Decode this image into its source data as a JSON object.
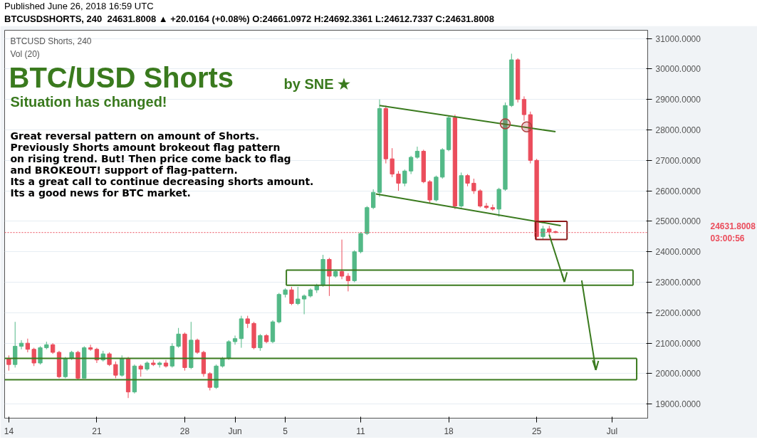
{
  "chart_data": {
    "type": "candlestick",
    "title": "BTC/USD Shorts",
    "subtitle": "Situation has changed!",
    "annotations": [
      "Published June 26, 2018 16:59 UTC",
      "BTCUSDSHORTS, 240  24631.8008 ▲ +20.0164 (+0.08%) O:24661.0972 H:24692.3361 L:24612.7337 C:24631.8008",
      "BTCUSD Shorts, 240",
      "Vol (20)",
      "by SNE ★",
      "Great reversal pattern on amount of Shorts.\nPreviously Shorts amount brokeout flag pattern\non rising trend. But! Then price come back to flag\nand BROKEOUT! support of flag-pattern.\nIts a great call to continue decreasing shorts amount.\nIts a good news for BTC market.",
      "03:00:56"
    ],
    "x": [
      "2018-05-14T00:00",
      "2018-05-14T12:00",
      "2018-05-15T00:00",
      "2018-05-15T12:00",
      "2018-05-16T00:00",
      "2018-05-16T12:00",
      "2018-05-17T00:00",
      "2018-05-17T12:00",
      "2018-05-18T00:00",
      "2018-05-18T12:00",
      "2018-05-19T00:00",
      "2018-05-19T12:00",
      "2018-05-20T00:00",
      "2018-05-20T12:00",
      "2018-05-21T00:00",
      "2018-05-21T12:00",
      "2018-05-22T00:00",
      "2018-05-22T12:00",
      "2018-05-23T00:00",
      "2018-05-23T12:00",
      "2018-05-24T00:00",
      "2018-05-24T12:00",
      "2018-05-25T00:00",
      "2018-05-25T12:00",
      "2018-05-26T00:00",
      "2018-05-26T12:00",
      "2018-05-27T00:00",
      "2018-05-27T12:00",
      "2018-05-28T00:00",
      "2018-05-28T12:00",
      "2018-05-29T00:00",
      "2018-05-29T12:00",
      "2018-05-30T00:00",
      "2018-05-30T12:00",
      "2018-05-31T00:00",
      "2018-05-31T12:00",
      "2018-06-01T00:00",
      "2018-06-01T12:00",
      "2018-06-02T00:00",
      "2018-06-02T12:00",
      "2018-06-03T00:00",
      "2018-06-03T12:00",
      "2018-06-04T00:00",
      "2018-06-04T12:00",
      "2018-06-05T00:00",
      "2018-06-05T12:00",
      "2018-06-06T00:00",
      "2018-06-06T12:00",
      "2018-06-07T00:00",
      "2018-06-07T12:00",
      "2018-06-08T00:00",
      "2018-06-08T12:00",
      "2018-06-09T00:00",
      "2018-06-09T12:00",
      "2018-06-10T00:00",
      "2018-06-10T12:00",
      "2018-06-11T00:00",
      "2018-06-11T12:00",
      "2018-06-12T00:00",
      "2018-06-12T12:00",
      "2018-06-13T00:00",
      "2018-06-13T12:00",
      "2018-06-14T00:00",
      "2018-06-14T12:00",
      "2018-06-15T00:00",
      "2018-06-15T12:00",
      "2018-06-16T00:00",
      "2018-06-16T12:00",
      "2018-06-17T00:00",
      "2018-06-17T12:00",
      "2018-06-18T00:00",
      "2018-06-18T12:00",
      "2018-06-19T00:00",
      "2018-06-19T12:00",
      "2018-06-20T00:00",
      "2018-06-20T12:00",
      "2018-06-21T00:00",
      "2018-06-21T12:00",
      "2018-06-22T00:00",
      "2018-06-22T12:00",
      "2018-06-23T00:00",
      "2018-06-23T12:00",
      "2018-06-24T00:00",
      "2018-06-24T12:00",
      "2018-06-25T00:00",
      "2018-06-25T12:00",
      "2018-06-26T00:00",
      "2018-06-26T12:00"
    ],
    "ohlc": [
      [
        20500,
        20600,
        20100,
        20300
      ],
      [
        20300,
        21700,
        20200,
        20900
      ],
      [
        20900,
        21100,
        20800,
        21000
      ],
      [
        21000,
        21150,
        20700,
        20800
      ],
      [
        20800,
        20850,
        20250,
        20350
      ],
      [
        20350,
        20900,
        20300,
        20850
      ],
      [
        20850,
        21050,
        20800,
        20950
      ],
      [
        20950,
        21000,
        20650,
        20700
      ],
      [
        20700,
        20750,
        19850,
        19900
      ],
      [
        19900,
        20550,
        19850,
        20500
      ],
      [
        20500,
        20750,
        20450,
        20700
      ],
      [
        20700,
        20750,
        19800,
        19850
      ],
      [
        19850,
        20900,
        19850,
        20850
      ],
      [
        20850,
        20950,
        20750,
        20800
      ],
      [
        20800,
        20850,
        20350,
        20450
      ],
      [
        20450,
        20750,
        20400,
        20650
      ],
      [
        20650,
        20700,
        20250,
        20300
      ],
      [
        20300,
        20400,
        19850,
        19950
      ],
      [
        19950,
        20600,
        19900,
        20500
      ],
      [
        20500,
        20550,
        19200,
        19400
      ],
      [
        19400,
        20300,
        19350,
        20250
      ],
      [
        20250,
        20300,
        19900,
        20150
      ],
      [
        20150,
        20400,
        20100,
        20350
      ],
      [
        20350,
        20450,
        20250,
        20300
      ],
      [
        20300,
        20400,
        20200,
        20350
      ],
      [
        20350,
        20450,
        20200,
        20250
      ],
      [
        20250,
        21000,
        20200,
        20900
      ],
      [
        20900,
        21500,
        20850,
        21300
      ],
      [
        21300,
        21350,
        20100,
        20200
      ],
      [
        20200,
        21700,
        20150,
        21100
      ],
      [
        21100,
        21150,
        20650,
        20700
      ],
      [
        20700,
        20750,
        19900,
        20000
      ],
      [
        20000,
        20050,
        19450,
        19550
      ],
      [
        19550,
        20300,
        19500,
        20250
      ],
      [
        20250,
        20550,
        20200,
        20500
      ],
      [
        20500,
        21100,
        20450,
        21050
      ],
      [
        21050,
        21250,
        20950,
        21150
      ],
      [
        21150,
        21900,
        20850,
        21800
      ],
      [
        21800,
        21900,
        21500,
        21650
      ],
      [
        21650,
        21700,
        20800,
        20850
      ],
      [
        20850,
        21300,
        20750,
        21250
      ],
      [
        21250,
        21300,
        21000,
        21050
      ],
      [
        21050,
        21750,
        21000,
        21700
      ],
      [
        21700,
        22650,
        21650,
        22600
      ],
      [
        22600,
        22800,
        22500,
        22750
      ],
      [
        22750,
        22850,
        22250,
        22300
      ],
      [
        22300,
        22850,
        22250,
        22450
      ],
      [
        22450,
        22600,
        21950,
        22550
      ],
      [
        22550,
        22800,
        22500,
        22750
      ],
      [
        22750,
        22950,
        22650,
        22900
      ],
      [
        22900,
        23900,
        22850,
        23750
      ],
      [
        23750,
        23800,
        22550,
        23200
      ],
      [
        23200,
        23400,
        23150,
        23350
      ],
      [
        23350,
        24400,
        23100,
        23200
      ],
      [
        23200,
        23300,
        22700,
        23050
      ],
      [
        23050,
        24050,
        23000,
        24000
      ],
      [
        24000,
        24650,
        23950,
        24600
      ],
      [
        24600,
        25500,
        24550,
        25450
      ],
      [
        25450,
        26050,
        25400,
        25950
      ],
      [
        25950,
        29000,
        25800,
        28700
      ],
      [
        28700,
        28800,
        26900,
        27050
      ],
      [
        27050,
        27400,
        26450,
        26550
      ],
      [
        26550,
        26650,
        26000,
        26250
      ],
      [
        26250,
        26700,
        26150,
        26650
      ],
      [
        26650,
        27150,
        26550,
        27100
      ],
      [
        27100,
        27450,
        27050,
        27300
      ],
      [
        27300,
        27350,
        26250,
        26300
      ],
      [
        26300,
        26350,
        25600,
        25700
      ],
      [
        25700,
        26500,
        25650,
        26450
      ],
      [
        26450,
        27400,
        26400,
        27350
      ],
      [
        27350,
        28450,
        27300,
        28400
      ],
      [
        28400,
        28500,
        25400,
        25500
      ],
      [
        25500,
        26600,
        25450,
        26500
      ],
      [
        26500,
        26550,
        26150,
        26250
      ],
      [
        26250,
        26400,
        25900,
        26000
      ],
      [
        26000,
        26050,
        25450,
        25500
      ],
      [
        25500,
        25600,
        25400,
        25450
      ],
      [
        25450,
        25550,
        25350,
        25400
      ],
      [
        25400,
        26100,
        25150,
        26050
      ],
      [
        26050,
        28900,
        26000,
        28800
      ],
      [
        28800,
        30500,
        28750,
        30300
      ],
      [
        30300,
        30350,
        28900,
        29000
      ],
      [
        29000,
        29100,
        28300,
        28500
      ],
      [
        28500,
        28600,
        26900,
        27000
      ],
      [
        27000,
        27050,
        24400,
        24500
      ],
      [
        24500,
        24850,
        24400,
        24750
      ],
      [
        24750,
        24850,
        24550,
        24650
      ],
      [
        24661.0972,
        24692.3361,
        24612.7337,
        24631.8008
      ]
    ],
    "colors": [
      "#eb4d5c",
      "#53b987",
      "#53b987",
      "#eb4d5c",
      "#eb4d5c",
      "#53b987",
      "#53b987",
      "#eb4d5c",
      "#eb4d5c",
      "#53b987",
      "#53b987",
      "#eb4d5c",
      "#53b987",
      "#eb4d5c",
      "#eb4d5c",
      "#53b987",
      "#eb4d5c",
      "#eb4d5c",
      "#53b987",
      "#eb4d5c",
      "#53b987",
      "#eb4d5c",
      "#53b987",
      "#eb4d5c",
      "#53b987",
      "#eb4d5c",
      "#53b987",
      "#53b987",
      "#eb4d5c",
      "#53b987",
      "#eb4d5c",
      "#eb4d5c",
      "#eb4d5c",
      "#53b987",
      "#53b987",
      "#53b987",
      "#53b987",
      "#53b987",
      "#eb4d5c",
      "#eb4d5c",
      "#53b987",
      "#eb4d5c",
      "#53b987",
      "#53b987",
      "#53b987",
      "#eb4d5c",
      "#53b987",
      "#53b987",
      "#53b987",
      "#53b987",
      "#53b987",
      "#eb4d5c",
      "#53b987",
      "#eb4d5c",
      "#eb4d5c",
      "#53b987",
      "#53b987",
      "#53b987",
      "#53b987",
      "#53b987",
      "#eb4d5c",
      "#eb4d5c",
      "#eb4d5c",
      "#53b987",
      "#53b987",
      "#53b987",
      "#eb4d5c",
      "#eb4d5c",
      "#53b987",
      "#53b987",
      "#53b987",
      "#eb4d5c",
      "#53b987",
      "#eb4d5c",
      "#eb4d5c",
      "#eb4d5c",
      "#eb4d5c",
      "#eb4d5c",
      "#53b987",
      "#53b987",
      "#53b987",
      "#eb4d5c",
      "#eb4d5c",
      "#eb4d5c",
      "#eb4d5c",
      "#53b987",
      "#eb4d5c",
      "#eb4d5c"
    ],
    "series": [
      {
        "type": "line",
        "color": "#3a7a1e",
        "x": [
          "2018-06-12T12:00",
          "2018-06-26T12:00"
        ],
        "values": [
          28800,
          27940
        ]
      },
      {
        "type": "line",
        "color": "#3a7a1e",
        "x": [
          "2018-06-12T05:00",
          "2018-06-26T22:00"
        ],
        "values": [
          25900,
          24860
        ]
      },
      {
        "type": "line",
        "color": "#3a7a1e",
        "x": [
          "2018-06-05T02:00",
          "2018-07-02T16:00"
        ],
        "values": [
          23400,
          23400
        ]
      },
      {
        "type": "line",
        "color": "#3a7a1e",
        "x": [
          "2018-06-05T02:00",
          "2018-07-02T16:00"
        ],
        "values": [
          22900,
          22900
        ]
      },
      {
        "type": "line",
        "color": "#3a7a1e",
        "x": [
          "2018-06-05T02:00",
          "2018-06-05T02:00"
        ],
        "values": [
          23400,
          22900
        ]
      },
      {
        "type": "line",
        "color": "#3a7a1e",
        "x": [
          "2018-07-02T16:00",
          "2018-07-02T16:00"
        ],
        "values": [
          23400,
          22900
        ]
      },
      {
        "type": "line",
        "color": "#3a7a1e",
        "x": [
          "2018-05-13T16:00",
          "2018-07-02T23:00"
        ],
        "values": [
          20500,
          20500
        ]
      },
      {
        "type": "line",
        "color": "#3a7a1e",
        "x": [
          "2018-05-13T16:00",
          "2018-07-02T23:00"
        ],
        "values": [
          19800,
          19800
        ]
      },
      {
        "type": "line",
        "color": "#3a7a1e",
        "x": [
          "2018-07-02T23:00",
          "2018-07-02T23:00"
        ],
        "values": [
          20500,
          19800
        ]
      },
      {
        "type": "line",
        "color": "#8b1a1a",
        "x": [
          "2018-06-24T22:00",
          "2018-06-27T10:00"
        ],
        "values": [
          25000,
          25000
        ]
      },
      {
        "type": "line",
        "color": "#8b1a1a",
        "x": [
          "2018-06-24T22:00",
          "2018-06-27T10:00"
        ],
        "values": [
          24400,
          24400
        ]
      },
      {
        "type": "line",
        "color": "#8b1a1a",
        "x": [
          "2018-06-24T22:00",
          "2018-06-24T22:00"
        ],
        "values": [
          25000,
          24400
        ]
      },
      {
        "type": "line",
        "color": "#8b1a1a",
        "x": [
          "2018-06-27T10:00",
          "2018-06-27T10:00"
        ],
        "values": [
          25000,
          24400
        ]
      },
      {
        "type": "line",
        "color": "#3a7a1e",
        "x": [
          "2018-06-26T00:00",
          "2018-06-27T05:00"
        ],
        "values": [
          24560,
          23010
        ]
      },
      {
        "type": "line",
        "color": "#3a7a1e",
        "x": [
          "2018-06-27T00:00",
          "2018-06-27T05:00"
        ],
        "values": [
          23290,
          23010
        ]
      },
      {
        "type": "line",
        "color": "#3a7a1e",
        "x": [
          "2018-06-27T05:00",
          "2018-06-27T10:00"
        ],
        "values": [
          23010,
          23330
        ]
      },
      {
        "type": "line",
        "color": "#3a7a1e",
        "x": [
          "2018-06-28T14:00",
          "2018-06-29T17:00"
        ],
        "values": [
          23060,
          20120
        ]
      },
      {
        "type": "line",
        "color": "#3a7a1e",
        "x": [
          "2018-06-29T11:00",
          "2018-06-29T17:00"
        ],
        "values": [
          20440,
          20120
        ]
      },
      {
        "type": "line",
        "color": "#3a7a1e",
        "x": [
          "2018-06-29T17:00",
          "2018-06-29T22:00"
        ],
        "values": [
          20120,
          20420
        ]
      },
      {
        "type": "scatter",
        "marker": "circle",
        "color": "#b04040",
        "x": [
          "2018-06-22T12:00",
          "2018-06-24T05:00"
        ],
        "values": [
          28200,
          28100
        ]
      }
    ],
    "ref_lines": [
      {
        "axis": "y",
        "value": 24631.8008,
        "label": "24631.8008",
        "color": "#eb4d5c",
        "line_style": "dotted"
      }
    ],
    "xlim": [
      "2018-05-13T16:00",
      "2018-07-03T20:00"
    ],
    "xticks": [
      {
        "value": "2018-05-14",
        "label": "14"
      },
      {
        "value": "2018-05-21",
        "label": "21"
      },
      {
        "value": "2018-05-28",
        "label": "28"
      },
      {
        "value": "2018-06-01",
        "label": "Jun"
      },
      {
        "value": "2018-06-05",
        "label": "5"
      },
      {
        "value": "2018-06-11",
        "label": "11"
      },
      {
        "value": "2018-06-18",
        "label": "18"
      },
      {
        "value": "2018-06-25",
        "label": "25"
      },
      {
        "value": "2018-07-01",
        "label": "Jul"
      }
    ],
    "ylim": [
      18540,
      31270
    ],
    "yticks": [
      {
        "value": 19000,
        "label": "19000.0000"
      },
      {
        "value": 20000,
        "label": "20000.0000"
      },
      {
        "value": 21000,
        "label": "21000.0000"
      },
      {
        "value": 22000,
        "label": "22000.0000"
      },
      {
        "value": 23000,
        "label": "23000.0000"
      },
      {
        "value": 24000,
        "label": "24000.0000"
      },
      {
        "value": 25000,
        "label": "25000.0000"
      },
      {
        "value": 26000,
        "label": "26000.0000"
      },
      {
        "value": 27000,
        "label": "27000.0000"
      },
      {
        "value": 28000,
        "label": "28000.0000"
      },
      {
        "value": 29000,
        "label": "29000.0000"
      },
      {
        "value": 30000,
        "label": "30000.0000"
      },
      {
        "value": 31000,
        "label": "31000.0000"
      }
    ],
    "grid": true
  }
}
